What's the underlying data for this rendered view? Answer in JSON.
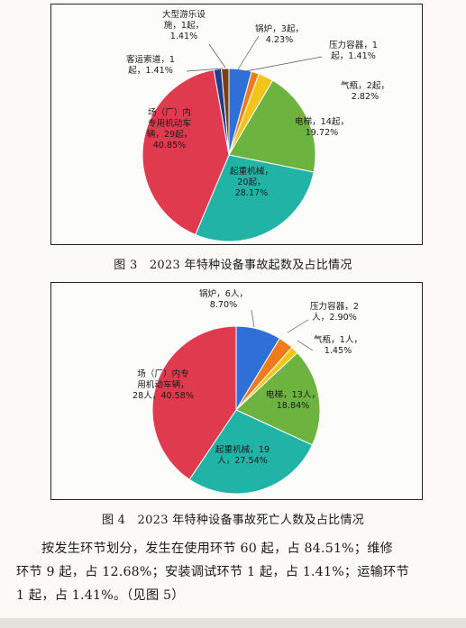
{
  "figures": [
    {
      "caption": "图 3　2023 年特种设备事故起数及占比情况",
      "chart_data": {
        "type": "pie",
        "title": "",
        "slices": [
          {
            "label_lines": [
              "锅炉，3起，",
              "4.23%"
            ],
            "value": 3,
            "percent": 4.23,
            "color": "#2f6fd8"
          },
          {
            "label_lines": [
              "压力容器，1",
              "起，1.41%"
            ],
            "value": 1,
            "percent": 1.41,
            "color": "#f07a1c"
          },
          {
            "label_lines": [
              "气瓶，2起，",
              "2.82%"
            ],
            "value": 2,
            "percent": 2.82,
            "color": "#f3c518"
          },
          {
            "label_lines": [
              "电梯，14起，",
              "19.72%"
            ],
            "value": 14,
            "percent": 19.72,
            "color": "#6db33f"
          },
          {
            "label_lines": [
              "起重机械，",
              "20起，",
              "28.17%"
            ],
            "value": 20,
            "percent": 28.17,
            "color": "#22b3a7"
          },
          {
            "label_lines": [
              "场（厂）内",
              "专用机动车",
              "辆，29起，",
              "40.85%"
            ],
            "value": 29,
            "percent": 40.85,
            "color": "#e03a4f"
          },
          {
            "label_lines": [
              "客运索道，1",
              "起，1.41%"
            ],
            "value": 1,
            "percent": 1.41,
            "color": "#1f3e8c"
          },
          {
            "label_lines": [
              "大型游乐设",
              "施，1起，",
              "1.41%"
            ],
            "value": 1,
            "percent": 1.41,
            "color": "#7a3f12"
          }
        ]
      }
    },
    {
      "caption": "图 4　2023 年特种设备事故死亡人数及占比情况",
      "chart_data": {
        "type": "pie",
        "title": "",
        "slices": [
          {
            "label_lines": [
              "锅炉，6人，",
              "8.70%"
            ],
            "value": 6,
            "percent": 8.7,
            "color": "#2f6fd8"
          },
          {
            "label_lines": [
              "压力容器，2",
              "人，2.90%"
            ],
            "value": 2,
            "percent": 2.9,
            "color": "#f07a1c"
          },
          {
            "label_lines": [
              "气瓶，1人，",
              "1.45%"
            ],
            "value": 1,
            "percent": 1.45,
            "color": "#f3c518"
          },
          {
            "label_lines": [
              "电梯，13人，",
              "18.84%"
            ],
            "value": 13,
            "percent": 18.84,
            "color": "#6db33f"
          },
          {
            "label_lines": [
              "起重机械，19",
              "人，27.54%"
            ],
            "value": 19,
            "percent": 27.54,
            "color": "#22b3a7"
          },
          {
            "label_lines": [
              "场（厂）内专",
              "用机动车辆，",
              "28人，40.58%"
            ],
            "value": 28,
            "percent": 40.58,
            "color": "#e03a4f"
          }
        ]
      }
    }
  ],
  "paragraph": {
    "lines": [
      "按发生环节划分，发生在使用环节 60 起，占 84.51%；维修",
      "环节 9 起，占 12.68%；安装调试环节 1 起，占 1.41%；运输环节",
      "1 起，占 1.41%。（见图 5）"
    ]
  }
}
